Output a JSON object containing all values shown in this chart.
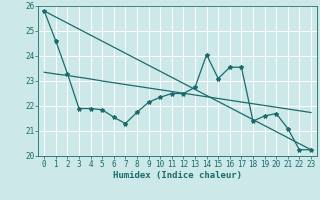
{
  "title": "",
  "xlabel": "Humidex (Indice chaleur)",
  "ylabel": "",
  "background_color": "#cde8e8",
  "grid_color": "#ffffff",
  "line_color": "#1a6b6b",
  "xlim": [
    -0.5,
    23.5
  ],
  "ylim": [
    20,
    26
  ],
  "yticks": [
    20,
    21,
    22,
    23,
    24,
    25,
    26
  ],
  "xticks": [
    0,
    1,
    2,
    3,
    4,
    5,
    6,
    7,
    8,
    9,
    10,
    11,
    12,
    13,
    14,
    15,
    16,
    17,
    18,
    19,
    20,
    21,
    22,
    23
  ],
  "series1_x": [
    0,
    1,
    2,
    3,
    4,
    5,
    6,
    7,
    8,
    9,
    10,
    11,
    12,
    13,
    14,
    15,
    16,
    17,
    18,
    19,
    20,
    21,
    22,
    23
  ],
  "series1_y": [
    25.8,
    24.6,
    23.3,
    21.9,
    21.9,
    21.85,
    21.55,
    21.3,
    21.75,
    22.15,
    22.35,
    22.5,
    22.5,
    22.75,
    24.05,
    23.1,
    23.55,
    23.55,
    21.4,
    21.6,
    21.7,
    21.1,
    20.25,
    20.25
  ],
  "series2_x": [
    0,
    1,
    2,
    3,
    4,
    5,
    6,
    7,
    8,
    9,
    10,
    11,
    12,
    13,
    14,
    15,
    16,
    17,
    18,
    19,
    20,
    21,
    22,
    23
  ],
  "series2_y": [
    23.35,
    23.28,
    23.22,
    23.15,
    23.08,
    23.0,
    22.93,
    22.86,
    22.79,
    22.72,
    22.65,
    22.58,
    22.51,
    22.44,
    22.37,
    22.3,
    22.23,
    22.16,
    22.09,
    22.02,
    21.95,
    21.88,
    21.81,
    21.74
  ],
  "series3_x": [
    0,
    23
  ],
  "series3_y": [
    25.8,
    20.25
  ],
  "marker": "*",
  "markersize": 3,
  "linewidth": 0.9,
  "tick_fontsize": 5.5,
  "xlabel_fontsize": 6.5
}
